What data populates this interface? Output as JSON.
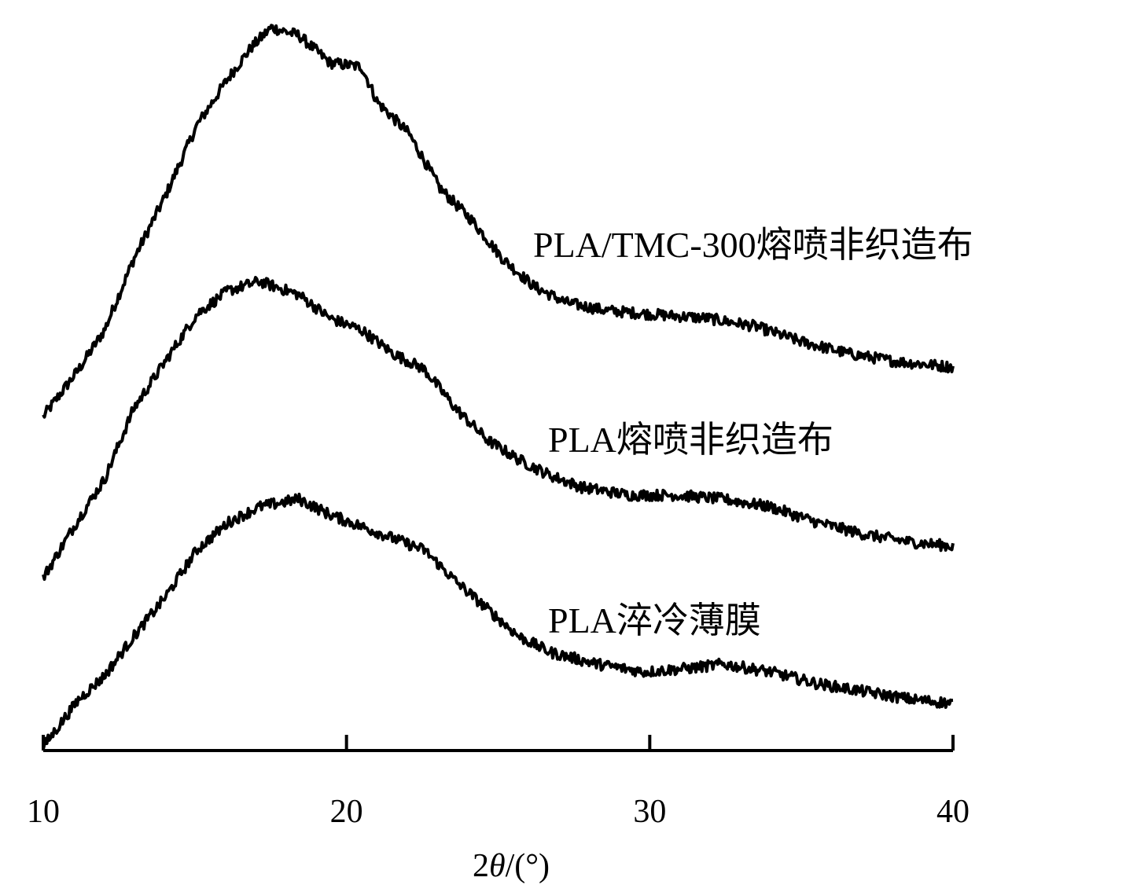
{
  "chart_data": {
    "type": "line",
    "title": "",
    "xlabel": "2θ/(°)",
    "xlabel_parts": {
      "prefix": "2",
      "symbol": "θ",
      "suffix": "/(°)"
    },
    "ylabel": "",
    "xlim": [
      10,
      40
    ],
    "ylim": [
      0,
      930
    ],
    "y_units": "intensity (a.u., offset/stacked)",
    "grid": false,
    "legend": "inline labels to the right of each curve",
    "xticks": [
      10,
      20,
      30,
      40
    ],
    "xtick_labels": [
      "10",
      "20",
      "30",
      "40"
    ],
    "series": [
      {
        "name": "PLA/TMC-300熔喷非织造布",
        "x": [
          10,
          11.17,
          12.02,
          12.98,
          14.02,
          15.06,
          16.09,
          16.87,
          17.52,
          18.43,
          19.46,
          20.5,
          21.02,
          22.06,
          23.09,
          24.13,
          25.17,
          26.2,
          27.24,
          28.54,
          30.09,
          31.91,
          33.46,
          35.02,
          36.57,
          38.13,
          40
        ],
        "values": [
          430,
          490,
          540,
          630,
          710,
          800,
          860,
          900,
          925,
          915,
          880,
          875,
          830,
          790,
          720,
          680,
          630,
          595,
          575,
          565,
          560,
          555,
          545,
          525,
          510,
          500,
          493
        ]
      },
      {
        "name": "PLA熔喷非织造布",
        "x": [
          10,
          11.17,
          12.02,
          12.98,
          14.02,
          15.06,
          16.09,
          17.13,
          18.43,
          19.46,
          20.5,
          21.54,
          22.57,
          23.61,
          24.65,
          25.69,
          26.72,
          27.76,
          29.32,
          30.87,
          32.43,
          33.98,
          35.54,
          37.09,
          38.65,
          40
        ],
        "values": [
          225,
          300,
          350,
          440,
          500,
          560,
          590,
          602,
          585,
          555,
          540,
          510,
          490,
          440,
          400,
          375,
          355,
          340,
          330,
          330,
          325,
          315,
          295,
          280,
          270,
          265
        ]
      },
      {
        "name": "PLA淬冷薄膜",
        "x": [
          10,
          11.17,
          12.02,
          12.98,
          14.02,
          15.06,
          16.09,
          17.13,
          18.43,
          19.46,
          20.5,
          21.54,
          22.57,
          23.61,
          24.65,
          25.69,
          26.72,
          28.28,
          29.83,
          31.39,
          32.43,
          33.98,
          35.54,
          37.09,
          38.65,
          40
        ],
        "values": [
          10,
          70,
          100,
          150,
          200,
          260,
          295,
          315,
          325,
          305,
          290,
          275,
          260,
          220,
          185,
          150,
          130,
          115,
          105,
          110,
          115,
          105,
          90,
          80,
          70,
          65
        ]
      }
    ]
  }
}
